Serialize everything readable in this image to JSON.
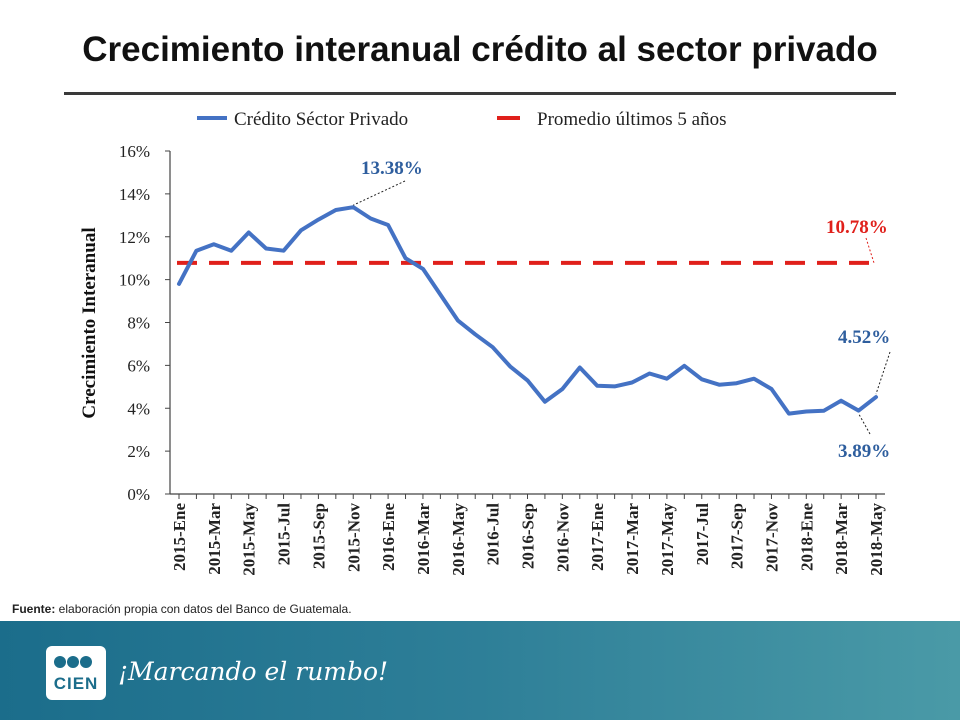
{
  "title": "Crecimiento interanual crédito al sector privado",
  "source": {
    "label": "Fuente:",
    "text": " elaboración propia con datos del Banco de Guatemala."
  },
  "footer": {
    "logo_text": "CIEN",
    "slogan": "¡Marcando el rumbo!"
  },
  "colors": {
    "series": "#4472c4",
    "average": "#e0201b",
    "label_blue": "#2e5e9e"
  },
  "chart_data": {
    "type": "line",
    "ylabel": "Crecimiento Interanual",
    "ylim": [
      0,
      16
    ],
    "yticks": [
      "0%",
      "2%",
      "4%",
      "6%",
      "8%",
      "10%",
      "12%",
      "14%",
      "16%"
    ],
    "xtick_labels": [
      "2015-Ene",
      "2015-Mar",
      "2015-May",
      "2015-Jul",
      "2015-Sep",
      "2015-Nov",
      "2016-Ene",
      "2016-Mar",
      "2016-May",
      "2016-Jul",
      "2016-Sep",
      "2016-Nov",
      "2017-Ene",
      "2017-Mar",
      "2017-May",
      "2017-Jul",
      "2017-Sep",
      "2017-Nov",
      "2018-Ene",
      "2018-Mar",
      "2018-May"
    ],
    "series": [
      {
        "name": "Crédito Séctor Privado",
        "values": [
          9.8,
          11.35,
          11.65,
          11.35,
          12.2,
          11.45,
          11.35,
          12.3,
          12.8,
          13.25,
          13.38,
          12.85,
          12.55,
          11.0,
          10.5,
          9.3,
          8.1,
          7.45,
          6.85,
          5.95,
          5.3,
          4.3,
          4.9,
          5.9,
          5.05,
          5.02,
          5.2,
          5.62,
          5.38,
          5.98,
          5.35,
          5.1,
          5.17,
          5.38,
          4.9,
          3.75,
          3.85,
          3.88,
          4.35,
          3.89,
          4.52
        ]
      },
      {
        "name": "Promedio últimos 5 años",
        "value": 10.78
      }
    ],
    "annotations": [
      {
        "label": "13.38%",
        "index": 10,
        "color": "blue"
      },
      {
        "label": "10.78%",
        "target": "average",
        "color": "red"
      },
      {
        "label": "4.52%",
        "index": 40,
        "color": "blue"
      },
      {
        "label": "3.89%",
        "index": 39,
        "color": "blue"
      }
    ]
  }
}
